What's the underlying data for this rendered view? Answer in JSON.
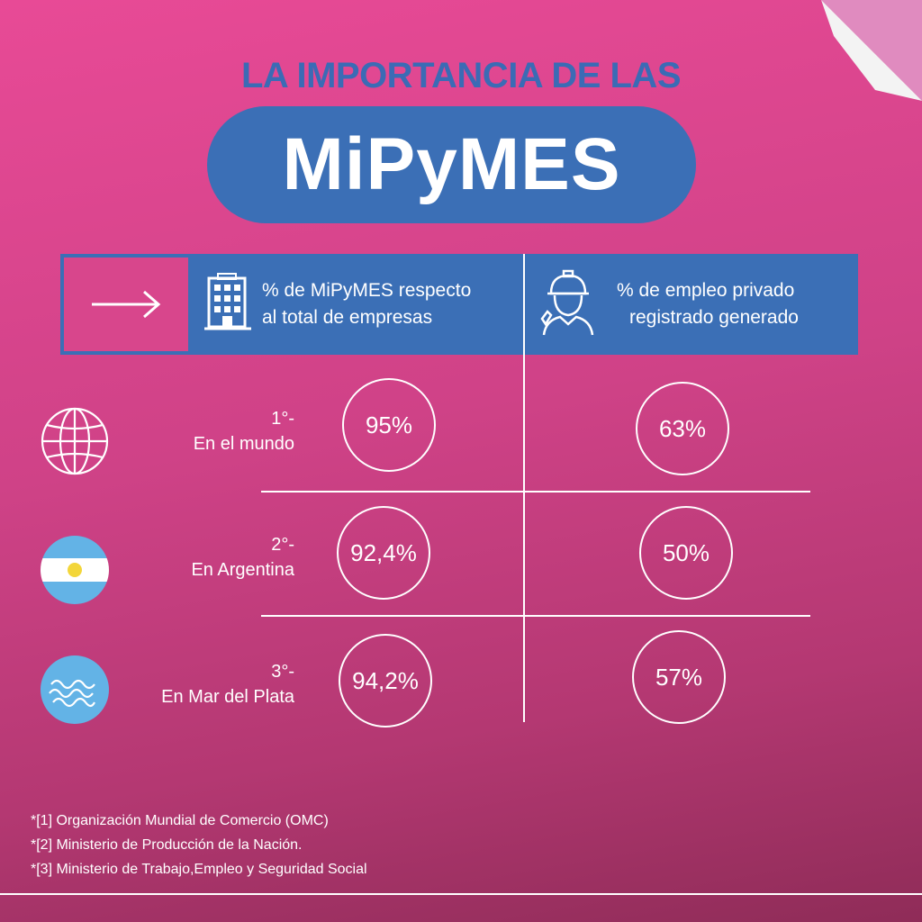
{
  "header": {
    "top_title": "LA IMPORTANCIA DE LAS",
    "main_title": "MiPyMES"
  },
  "columns": {
    "col1_line1": "% de MiPyMES respecto",
    "col1_line2": "al total de empresas",
    "col2_line1": "% de empleo privado",
    "col2_line2": "registrado generado",
    "arrow_icon": "arrow-right-icon",
    "col1_icon": "building-icon",
    "col2_icon": "worker-icon"
  },
  "rows": [
    {
      "rank": "1°-",
      "label": "En el mundo",
      "companies": "95%",
      "employment": "63%",
      "icon": "globe-icon"
    },
    {
      "rank": "2°-",
      "label": "En Argentina",
      "companies": "92,4%",
      "employment": "50%",
      "icon": "argentina-flag-icon"
    },
    {
      "rank": "3°-",
      "label": "En Mar del Plata",
      "companies": "94,2%",
      "employment": "57%",
      "icon": "waves-icon"
    }
  ],
  "notes": [
    "*[1] Organización Mundial de Comercio (OMC)",
    "*[2] Ministerio de Producción de la Nación.",
    "*[3] Ministerio de Trabajo,Empleo y Seguridad Social"
  ],
  "colors": {
    "blue": "#3b6fb6",
    "pink": "#e84a96",
    "white": "#ffffff",
    "sky": "#63b3e6",
    "sun": "#f3d63a"
  }
}
